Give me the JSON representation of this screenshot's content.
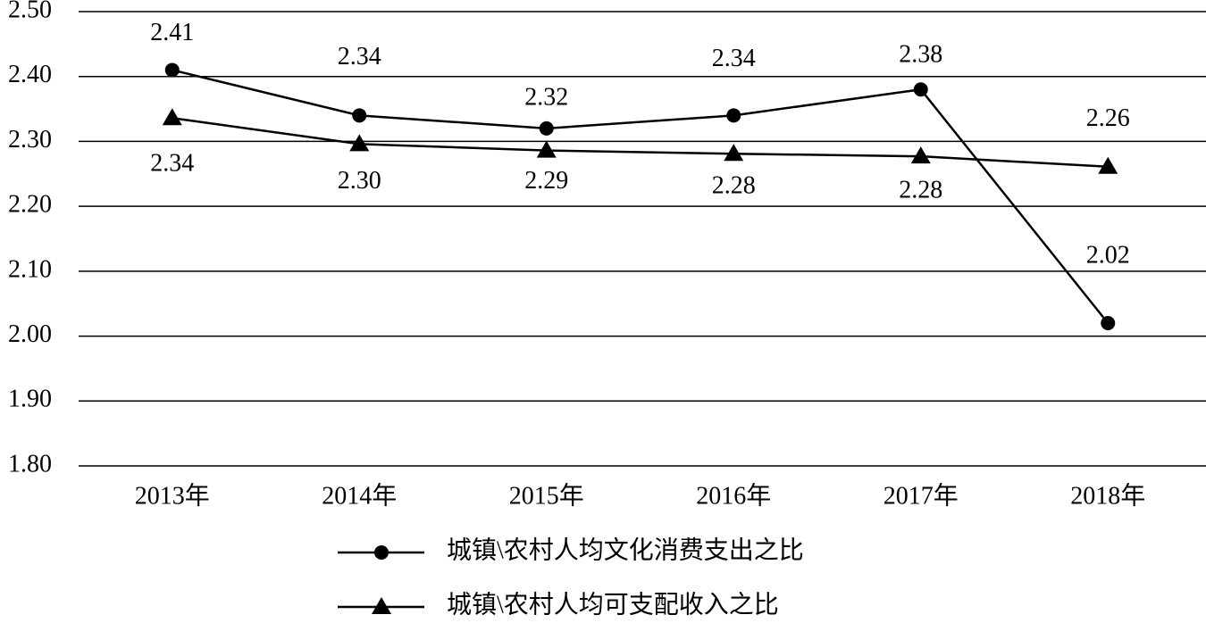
{
  "chart_data": {
    "type": "line",
    "categories": [
      "2013年",
      "2014年",
      "2015年",
      "2016年",
      "2017年",
      "2018年"
    ],
    "series": [
      {
        "name": "城镇\\农村人均文化消费支出之比",
        "color": "#000000",
        "marker": "circle",
        "values": [
          2.41,
          2.34,
          2.32,
          2.34,
          2.38,
          2.02
        ]
      },
      {
        "name": "城镇\\农村人均可支配收入之比",
        "color": "#000000",
        "marker": "triangle",
        "values": [
          2.336,
          2.296,
          2.286,
          2.281,
          2.277,
          2.261
        ],
        "value_labels": [
          "2.34",
          "2.30",
          "2.29",
          "2.28",
          "2.28",
          "2.26"
        ]
      }
    ],
    "ylim": [
      1.8,
      2.5
    ],
    "yticks": [
      {
        "value": 1.8,
        "label": "1.80"
      },
      {
        "value": 1.9,
        "label": "1.90"
      },
      {
        "value": 2.0,
        "label": "2.00"
      },
      {
        "value": 2.1,
        "label": "2.10"
      },
      {
        "value": 2.2,
        "label": "2.20"
      },
      {
        "value": 2.3,
        "label": "2.30"
      },
      {
        "value": 2.4,
        "label": "2.40"
      },
      {
        "value": 2.5,
        "label": "2.50"
      }
    ],
    "grid": true,
    "legend": "bottom"
  }
}
